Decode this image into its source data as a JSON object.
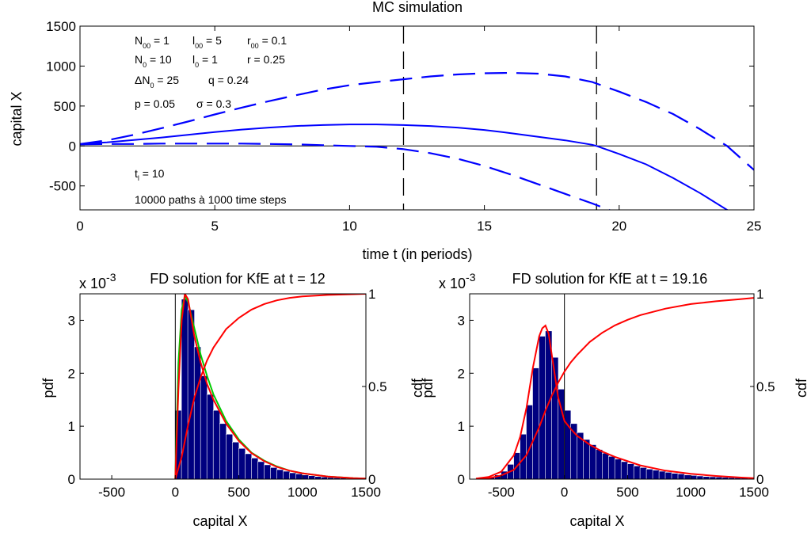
{
  "figure": {
    "background": "#ffffff",
    "colors": {
      "paths": "#0000ff",
      "cdf": "#ff0000",
      "pdf": "#ff0000",
      "pdf_alt": "#00cc00",
      "bars": "#000080",
      "axes": "#000000"
    }
  },
  "chart_data": [
    {
      "type": "line",
      "title": "MC simulation",
      "xlabel": "time t (in periods)",
      "ylabel": "capital X",
      "xlim": [
        0,
        25
      ],
      "ylim": [
        -800,
        1500
      ],
      "xticks": [
        "0",
        "5",
        "10",
        "15",
        "20",
        "25"
      ],
      "yticks": [
        "-500",
        "0",
        "500",
        "1000",
        "1500"
      ],
      "vlines": [
        12,
        19.16
      ],
      "hline": 0,
      "annotations": {
        "params": [
          {
            "parts": [
              [
                "N",
                "00",
                " = 1"
              ],
              [
                "l",
                "00",
                " = 5"
              ],
              [
                "r",
                "00",
                " = 0.1"
              ]
            ]
          },
          {
            "parts": [
              [
                "N",
                "0",
                " = 10"
              ],
              [
                "l",
                "0",
                " = 1"
              ],
              [
                "r",
                "",
                " =  0.25"
              ]
            ]
          },
          {
            "parts": [
              [
                "ΔN",
                "0",
                " = 25"
              ],
              [
                "q",
                "",
                " = 0.24"
              ]
            ]
          },
          {
            "parts": [
              [
                "p",
                "",
                " = 0.05"
              ],
              [
                "σ",
                "",
                " = 0.3"
              ]
            ]
          }
        ],
        "tl": {
          "base": "t",
          "sub": "l",
          "rest": " = 10"
        },
        "paths_note": "10000 paths à 1000 time steps"
      },
      "series": [
        {
          "style": "solid",
          "x": [
            0,
            1,
            2,
            3,
            4,
            5,
            6,
            7,
            8,
            9,
            10,
            11,
            12,
            13,
            14,
            15,
            16,
            17,
            18,
            19,
            19.16,
            20,
            21,
            22,
            23,
            24,
            25
          ],
          "y": [
            25,
            45,
            75,
            105,
            140,
            175,
            205,
            230,
            250,
            262,
            270,
            270,
            262,
            250,
            230,
            200,
            160,
            115,
            70,
            15,
            0,
            -100,
            -230,
            -400,
            -590,
            -800,
            -1000
          ]
        },
        {
          "style": "dashed",
          "x": [
            0,
            1,
            2,
            3,
            4,
            5,
            6,
            7,
            8,
            9,
            10,
            11,
            12,
            13,
            14,
            15,
            16,
            17,
            18,
            19,
            20,
            21,
            22,
            23,
            24,
            25
          ],
          "y": [
            25,
            70,
            140,
            220,
            305,
            395,
            480,
            560,
            635,
            705,
            760,
            800,
            835,
            870,
            895,
            910,
            915,
            905,
            870,
            800,
            680,
            550,
            400,
            210,
            0,
            -300
          ]
        },
        {
          "style": "dashed",
          "x": [
            0,
            1,
            2,
            3,
            4,
            5,
            6,
            7,
            8,
            9,
            10,
            11,
            12,
            13,
            14,
            15,
            16,
            17,
            18,
            19,
            20
          ],
          "y": [
            20,
            25,
            25,
            30,
            30,
            30,
            30,
            25,
            20,
            10,
            0,
            -10,
            -40,
            -90,
            -160,
            -250,
            -360,
            -480,
            -600,
            -720,
            -850
          ]
        }
      ]
    },
    {
      "type": "bar",
      "title": "FD solution for KfE at t = 12",
      "exponent": "x 10",
      "exponent_power": "-3",
      "xlabel": "capital X",
      "ylabel": "pdf",
      "y2label": "cdf",
      "xlim": [
        -750,
        1500
      ],
      "ylim": [
        0,
        3.5
      ],
      "y2lim": [
        0,
        1
      ],
      "xticks": [
        "-500",
        "0",
        "500",
        "1000",
        "1500"
      ],
      "yticks": [
        "0",
        "1",
        "2",
        "3"
      ],
      "y2ticks": [
        "0",
        "0.5",
        "1"
      ],
      "vline": 0,
      "hist": {
        "x": [
          25,
          75,
          125,
          175,
          225,
          275,
          325,
          375,
          425,
          475,
          525,
          575,
          625,
          675,
          725,
          775,
          825,
          875,
          925,
          975,
          1025,
          1075,
          1125,
          1175,
          1225,
          1275,
          1325,
          1375,
          1425
        ],
        "values": [
          1.3,
          3.4,
          3.2,
          2.5,
          1.95,
          1.6,
          1.3,
          1.05,
          0.85,
          0.7,
          0.58,
          0.48,
          0.4,
          0.33,
          0.27,
          0.22,
          0.18,
          0.15,
          0.12,
          0.1,
          0.08,
          0.065,
          0.05,
          0.04,
          0.032,
          0.025,
          0.02,
          0.015,
          0.01
        ]
      },
      "pdf_green": {
        "x": [
          0,
          25,
          50,
          75,
          100,
          125,
          150,
          200,
          250,
          300,
          400,
          500,
          600,
          700,
          800,
          900,
          1000,
          1200,
          1400,
          1500
        ],
        "y": [
          0,
          2.2,
          3.2,
          3.45,
          3.35,
          3.1,
          2.85,
          2.35,
          1.95,
          1.6,
          1.1,
          0.75,
          0.5,
          0.35,
          0.24,
          0.16,
          0.11,
          0.05,
          0.02,
          0.01
        ]
      },
      "pdf_red": {
        "x": [
          0,
          25,
          50,
          75,
          100,
          125,
          150,
          200,
          250,
          300,
          400,
          500,
          600,
          700,
          800,
          900,
          1000,
          1200,
          1400,
          1500
        ],
        "y": [
          0,
          1.7,
          3.0,
          3.5,
          3.4,
          3.05,
          2.7,
          2.2,
          1.8,
          1.5,
          1.05,
          0.72,
          0.49,
          0.34,
          0.23,
          0.16,
          0.11,
          0.05,
          0.02,
          0.01
        ]
      },
      "cdf": {
        "x": [
          0,
          50,
          100,
          150,
          200,
          250,
          300,
          400,
          500,
          600,
          700,
          800,
          900,
          1000,
          1200,
          1400,
          1500
        ],
        "y": [
          0,
          0.12,
          0.29,
          0.44,
          0.55,
          0.64,
          0.71,
          0.81,
          0.87,
          0.915,
          0.945,
          0.965,
          0.978,
          0.986,
          0.994,
          0.998,
          1.0
        ]
      }
    },
    {
      "type": "bar",
      "title": "FD solution for KfE at t = 19.16",
      "exponent": "x 10",
      "exponent_power": "-3",
      "xlabel": "capital X",
      "ylabel": "pdf",
      "y2label": "cdf",
      "xlim": [
        -750,
        1500
      ],
      "ylim": [
        0,
        3.5
      ],
      "y2lim": [
        0,
        1
      ],
      "xticks": [
        "-500",
        "0",
        "500",
        "1000",
        "1500"
      ],
      "yticks": [
        "0",
        "1",
        "2",
        "3"
      ],
      "y2ticks": [
        "0",
        "0.5",
        "1"
      ],
      "vline": 0,
      "hist": {
        "x": [
          -625,
          -575,
          -525,
          -475,
          -425,
          -375,
          -325,
          -275,
          -225,
          -175,
          -125,
          -75,
          -25,
          25,
          75,
          125,
          175,
          225,
          275,
          325,
          375,
          425,
          475,
          525,
          575,
          625,
          675,
          725,
          775,
          825,
          875,
          925,
          975,
          1025,
          1075,
          1125,
          1175,
          1225,
          1275,
          1325,
          1375,
          1425
        ],
        "values": [
          0.02,
          0.04,
          0.08,
          0.15,
          0.28,
          0.5,
          0.85,
          1.4,
          2.1,
          2.7,
          2.8,
          2.3,
          1.7,
          1.3,
          1.05,
          0.88,
          0.75,
          0.65,
          0.56,
          0.49,
          0.43,
          0.38,
          0.33,
          0.29,
          0.25,
          0.22,
          0.19,
          0.17,
          0.15,
          0.13,
          0.11,
          0.1,
          0.08,
          0.07,
          0.06,
          0.05,
          0.045,
          0.04,
          0.035,
          0.03,
          0.025,
          0.02
        ]
      },
      "pdf_red": {
        "x": [
          -700,
          -600,
          -500,
          -400,
          -350,
          -300,
          -250,
          -200,
          -175,
          -150,
          -125,
          -100,
          -50,
          0,
          50,
          100,
          200,
          300,
          400,
          600,
          800,
          1000,
          1200,
          1400,
          1500
        ],
        "y": [
          0.01,
          0.04,
          0.14,
          0.45,
          0.8,
          1.35,
          2.1,
          2.7,
          2.85,
          2.9,
          2.75,
          2.35,
          1.55,
          1.1,
          0.95,
          0.82,
          0.65,
          0.52,
          0.42,
          0.26,
          0.16,
          0.1,
          0.06,
          0.03,
          0.02
        ]
      },
      "cdf": {
        "x": [
          -700,
          -600,
          -500,
          -400,
          -300,
          -200,
          -150,
          -100,
          -50,
          0,
          50,
          100,
          200,
          300,
          400,
          500,
          600,
          800,
          1000,
          1200,
          1400,
          1500
        ],
        "y": [
          0,
          0.005,
          0.02,
          0.05,
          0.13,
          0.28,
          0.37,
          0.45,
          0.52,
          0.58,
          0.63,
          0.67,
          0.74,
          0.79,
          0.83,
          0.86,
          0.885,
          0.92,
          0.945,
          0.96,
          0.972,
          0.978
        ]
      }
    }
  ]
}
